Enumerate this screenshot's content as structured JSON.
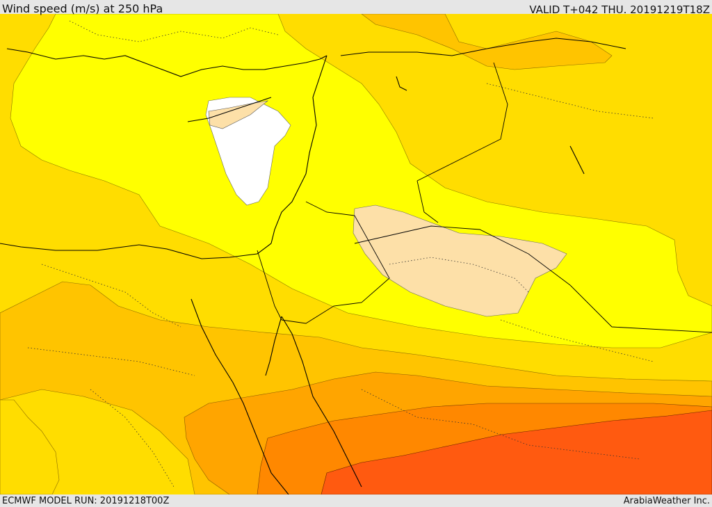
{
  "header": {
    "title": "Wind speed (m/s) at 250 hPa",
    "valid_time": "VALID T+042 THU. 20191219T18Z"
  },
  "footer": {
    "model_run": "ECMWF MODEL RUN: 20191218T00Z",
    "credit": "ArabiaWeather Inc."
  },
  "map_layers": {
    "wind_speed_bands": [
      {
        "name": "calm-core",
        "color": "#ffffff"
      },
      {
        "name": "low-light",
        "color": "#fde0a8"
      },
      {
        "name": "low",
        "color": "#ffff00"
      },
      {
        "name": "moderate",
        "color": "#ffdd00"
      },
      {
        "name": "elevated",
        "color": "#ffc400"
      },
      {
        "name": "high",
        "color": "#ffa500"
      },
      {
        "name": "very-high",
        "color": "#ff8800"
      },
      {
        "name": "jet-core",
        "color": "#ff5a10"
      }
    ],
    "coastline_color": "#000000",
    "border_style": "dotted"
  }
}
